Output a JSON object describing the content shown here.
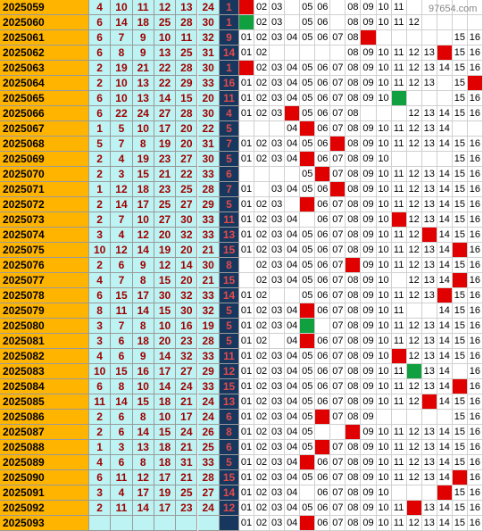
{
  "chart_data": {
    "type": "table",
    "watermark": "97654.com",
    "columns": {
      "issue": "issue",
      "numbers": [
        "n1",
        "n2",
        "n3",
        "n4",
        "n5",
        "n6"
      ],
      "blue": "blue",
      "positions": [
        "01",
        "02",
        "03",
        "04",
        "05",
        "06",
        "07",
        "08",
        "09",
        "10",
        "11",
        "12",
        "13",
        "14",
        "15",
        "16"
      ]
    },
    "rows": [
      {
        "issue": "2025059",
        "numbers": [
          "4",
          "10",
          "11",
          "12",
          "13",
          "24"
        ],
        "blue": "1",
        "hit": 1,
        "hit_color": "red",
        "shown": [
          1,
          2,
          3,
          5,
          6,
          8,
          9,
          10,
          11
        ]
      },
      {
        "issue": "2025060",
        "numbers": [
          "6",
          "14",
          "18",
          "25",
          "28",
          "30"
        ],
        "blue": "1",
        "hit": 1,
        "hit_color": "green",
        "shown": [
          2,
          3,
          5,
          6,
          8,
          9,
          10,
          11,
          12
        ]
      },
      {
        "issue": "2025061",
        "numbers": [
          "6",
          "7",
          "9",
          "10",
          "11",
          "32"
        ],
        "blue": "9",
        "hit": 9,
        "hit_color": "red",
        "shown": [
          1,
          2,
          3,
          4,
          5,
          6,
          7,
          8,
          15,
          16
        ]
      },
      {
        "issue": "2025062",
        "numbers": [
          "6",
          "8",
          "9",
          "13",
          "25",
          "31"
        ],
        "blue": "14",
        "hit": 14,
        "hit_color": "red",
        "shown": [
          1,
          2,
          8,
          9,
          10,
          11,
          12,
          13,
          15,
          16
        ]
      },
      {
        "issue": "2025063",
        "numbers": [
          "2",
          "19",
          "21",
          "22",
          "28",
          "30"
        ],
        "blue": "1",
        "hit": 1,
        "hit_color": "red",
        "shown": [
          2,
          3,
          4,
          5,
          6,
          7,
          8,
          9,
          10,
          11,
          12,
          13,
          14,
          15,
          16
        ]
      },
      {
        "issue": "2025064",
        "numbers": [
          "2",
          "10",
          "13",
          "22",
          "29",
          "33"
        ],
        "blue": "16",
        "hit": 16,
        "hit_color": "red",
        "shown": [
          1,
          2,
          3,
          4,
          5,
          6,
          7,
          8,
          9,
          10,
          11,
          12,
          13,
          15
        ]
      },
      {
        "issue": "2025065",
        "numbers": [
          "6",
          "10",
          "13",
          "14",
          "15",
          "20"
        ],
        "blue": "11",
        "hit": 11,
        "hit_color": "green",
        "shown": [
          1,
          2,
          3,
          4,
          5,
          6,
          7,
          8,
          9,
          10,
          15,
          16
        ]
      },
      {
        "issue": "2025066",
        "numbers": [
          "6",
          "22",
          "24",
          "27",
          "28",
          "30"
        ],
        "blue": "4",
        "hit": 4,
        "hit_color": "red",
        "shown": [
          1,
          2,
          3,
          5,
          6,
          7,
          8,
          12,
          13,
          14,
          15,
          16
        ]
      },
      {
        "issue": "2025067",
        "numbers": [
          "1",
          "5",
          "10",
          "17",
          "20",
          "22"
        ],
        "blue": "5",
        "hit": 5,
        "hit_color": "red",
        "shown": [
          4,
          6,
          7,
          8,
          9,
          10,
          11,
          12,
          13,
          14
        ]
      },
      {
        "issue": "2025068",
        "numbers": [
          "5",
          "7",
          "8",
          "19",
          "20",
          "31"
        ],
        "blue": "7",
        "hit": 7,
        "hit_color": "red",
        "shown": [
          1,
          2,
          3,
          4,
          5,
          6,
          8,
          9,
          10,
          11,
          12,
          13,
          14,
          15,
          16
        ]
      },
      {
        "issue": "2025069",
        "numbers": [
          "2",
          "4",
          "19",
          "23",
          "27",
          "30"
        ],
        "blue": "5",
        "hit": 5,
        "hit_color": "red",
        "shown": [
          1,
          2,
          3,
          4,
          6,
          7,
          8,
          9,
          10,
          15,
          16
        ]
      },
      {
        "issue": "2025070",
        "numbers": [
          "2",
          "3",
          "15",
          "21",
          "22",
          "33"
        ],
        "blue": "6",
        "hit": 6,
        "hit_color": "red",
        "shown": [
          5,
          7,
          8,
          9,
          10,
          11,
          12,
          13,
          14,
          15,
          16
        ]
      },
      {
        "issue": "2025071",
        "numbers": [
          "1",
          "12",
          "18",
          "23",
          "25",
          "28"
        ],
        "blue": "7",
        "hit": 7,
        "hit_color": "red",
        "shown": [
          1,
          3,
          4,
          5,
          6,
          8,
          9,
          10,
          11,
          12,
          13,
          14,
          15,
          16
        ]
      },
      {
        "issue": "2025072",
        "numbers": [
          "2",
          "14",
          "17",
          "25",
          "27",
          "29"
        ],
        "blue": "5",
        "hit": 5,
        "hit_color": "red",
        "shown": [
          1,
          2,
          3,
          6,
          7,
          8,
          9,
          10,
          11,
          12,
          13,
          14,
          15,
          16
        ]
      },
      {
        "issue": "2025073",
        "numbers": [
          "2",
          "7",
          "10",
          "27",
          "30",
          "33"
        ],
        "blue": "11",
        "hit": 11,
        "hit_color": "red",
        "shown": [
          1,
          2,
          3,
          4,
          6,
          7,
          8,
          9,
          10,
          12,
          13,
          14,
          15,
          16
        ]
      },
      {
        "issue": "2025074",
        "numbers": [
          "3",
          "4",
          "12",
          "20",
          "32",
          "33"
        ],
        "blue": "13",
        "hit": 13,
        "hit_color": "red",
        "shown": [
          1,
          2,
          3,
          4,
          5,
          6,
          7,
          8,
          9,
          10,
          11,
          12,
          14,
          15,
          16
        ]
      },
      {
        "issue": "2025075",
        "numbers": [
          "10",
          "12",
          "14",
          "19",
          "20",
          "21"
        ],
        "blue": "15",
        "hit": 15,
        "hit_color": "red",
        "shown": [
          1,
          2,
          3,
          4,
          5,
          6,
          7,
          8,
          9,
          10,
          11,
          12,
          13,
          14,
          16
        ]
      },
      {
        "issue": "2025076",
        "numbers": [
          "2",
          "6",
          "9",
          "12",
          "14",
          "30"
        ],
        "blue": "8",
        "hit": 8,
        "hit_color": "red",
        "shown": [
          2,
          3,
          4,
          5,
          6,
          7,
          9,
          10,
          11,
          12,
          13,
          14,
          15,
          16
        ]
      },
      {
        "issue": "2025077",
        "numbers": [
          "4",
          "7",
          "8",
          "15",
          "20",
          "21"
        ],
        "blue": "15",
        "hit": 15,
        "hit_color": "red",
        "shown": [
          2,
          3,
          4,
          5,
          6,
          7,
          8,
          9,
          10,
          12,
          13,
          14,
          16
        ]
      },
      {
        "issue": "2025078",
        "numbers": [
          "6",
          "15",
          "17",
          "30",
          "32",
          "33"
        ],
        "blue": "14",
        "hit": 14,
        "hit_color": "red",
        "shown": [
          1,
          2,
          5,
          6,
          7,
          8,
          9,
          10,
          11,
          12,
          13,
          15,
          16
        ]
      },
      {
        "issue": "2025079",
        "numbers": [
          "8",
          "11",
          "14",
          "15",
          "30",
          "32"
        ],
        "blue": "5",
        "hit": 5,
        "hit_color": "red",
        "shown": [
          1,
          2,
          3,
          4,
          6,
          7,
          8,
          9,
          10,
          11,
          14,
          15,
          16
        ]
      },
      {
        "issue": "2025080",
        "numbers": [
          "3",
          "7",
          "8",
          "10",
          "16",
          "19"
        ],
        "blue": "5",
        "hit": 5,
        "hit_color": "green",
        "shown": [
          1,
          2,
          3,
          4,
          7,
          8,
          9,
          10,
          11,
          12,
          13,
          14,
          15,
          16
        ]
      },
      {
        "issue": "2025081",
        "numbers": [
          "3",
          "6",
          "18",
          "20",
          "23",
          "28"
        ],
        "blue": "5",
        "hit": 5,
        "hit_color": "red",
        "shown": [
          1,
          2,
          4,
          6,
          7,
          8,
          9,
          10,
          11,
          12,
          13,
          14,
          15,
          16
        ]
      },
      {
        "issue": "2025082",
        "numbers": [
          "4",
          "6",
          "9",
          "14",
          "32",
          "33"
        ],
        "blue": "11",
        "hit": 11,
        "hit_color": "red",
        "shown": [
          1,
          2,
          3,
          4,
          5,
          6,
          7,
          8,
          9,
          10,
          12,
          13,
          14,
          15,
          16
        ]
      },
      {
        "issue": "2025083",
        "numbers": [
          "10",
          "15",
          "16",
          "17",
          "27",
          "29"
        ],
        "blue": "12",
        "hit": 12,
        "hit_color": "green",
        "shown": [
          1,
          2,
          3,
          4,
          5,
          6,
          7,
          8,
          9,
          10,
          11,
          13,
          14,
          16
        ]
      },
      {
        "issue": "2025084",
        "numbers": [
          "6",
          "8",
          "10",
          "14",
          "24",
          "33"
        ],
        "blue": "15",
        "hit": 15,
        "hit_color": "red",
        "shown": [
          1,
          2,
          3,
          4,
          5,
          6,
          7,
          8,
          9,
          10,
          11,
          12,
          13,
          14,
          16
        ]
      },
      {
        "issue": "2025085",
        "numbers": [
          "11",
          "14",
          "15",
          "18",
          "21",
          "24"
        ],
        "blue": "13",
        "hit": 13,
        "hit_color": "red",
        "shown": [
          1,
          2,
          3,
          4,
          5,
          6,
          7,
          8,
          9,
          10,
          11,
          12,
          14,
          15,
          16
        ]
      },
      {
        "issue": "2025086",
        "numbers": [
          "2",
          "6",
          "8",
          "10",
          "17",
          "24"
        ],
        "blue": "6",
        "hit": 6,
        "hit_color": "red",
        "shown": [
          1,
          2,
          3,
          4,
          5,
          7,
          8,
          9,
          15,
          16
        ]
      },
      {
        "issue": "2025087",
        "numbers": [
          "2",
          "6",
          "14",
          "15",
          "24",
          "26"
        ],
        "blue": "8",
        "hit": 8,
        "hit_color": "red",
        "shown": [
          1,
          2,
          3,
          4,
          5,
          9,
          10,
          11,
          12,
          13,
          14,
          15,
          16
        ]
      },
      {
        "issue": "2025088",
        "numbers": [
          "1",
          "3",
          "13",
          "18",
          "21",
          "25"
        ],
        "blue": "6",
        "hit": 6,
        "hit_color": "red",
        "shown": [
          1,
          2,
          3,
          4,
          5,
          7,
          8,
          9,
          10,
          11,
          12,
          13,
          14,
          15,
          16
        ]
      },
      {
        "issue": "2025089",
        "numbers": [
          "4",
          "6",
          "8",
          "18",
          "31",
          "33"
        ],
        "blue": "5",
        "hit": 5,
        "hit_color": "red",
        "shown": [
          1,
          2,
          3,
          4,
          6,
          7,
          8,
          9,
          10,
          11,
          12,
          13,
          14,
          15,
          16
        ]
      },
      {
        "issue": "2025090",
        "numbers": [
          "6",
          "11",
          "12",
          "17",
          "21",
          "28"
        ],
        "blue": "15",
        "hit": 15,
        "hit_color": "red",
        "shown": [
          1,
          2,
          3,
          4,
          5,
          6,
          7,
          8,
          9,
          10,
          11,
          12,
          13,
          14,
          16
        ]
      },
      {
        "issue": "2025091",
        "numbers": [
          "3",
          "4",
          "17",
          "19",
          "25",
          "27"
        ],
        "blue": "14",
        "hit": 14,
        "hit_color": "red",
        "shown": [
          1,
          2,
          3,
          4,
          6,
          7,
          8,
          9,
          10,
          15,
          16
        ]
      },
      {
        "issue": "2025092",
        "numbers": [
          "2",
          "11",
          "14",
          "17",
          "23",
          "24"
        ],
        "blue": "12",
        "hit": 12,
        "hit_color": "red",
        "shown": [
          1,
          2,
          3,
          4,
          5,
          6,
          7,
          8,
          9,
          10,
          11,
          13,
          14,
          15,
          16
        ]
      },
      {
        "issue": "2025093",
        "numbers": [
          "",
          "",
          "",
          "",
          "",
          ""
        ],
        "blue": "",
        "hit": 5,
        "hit_color": "red",
        "shown": [
          1,
          2,
          3,
          4,
          6,
          7,
          8,
          9,
          10,
          11,
          12,
          13,
          14,
          15,
          16
        ]
      }
    ]
  },
  "colors": {
    "issue_bg": "#ffb400",
    "number_bg": "#bdf3f3",
    "number_text": "#a00000",
    "blue_bg": "#17375e",
    "blue_text": "#e34b4b",
    "hit_red": "#e00000",
    "hit_green": "#10a040"
  }
}
